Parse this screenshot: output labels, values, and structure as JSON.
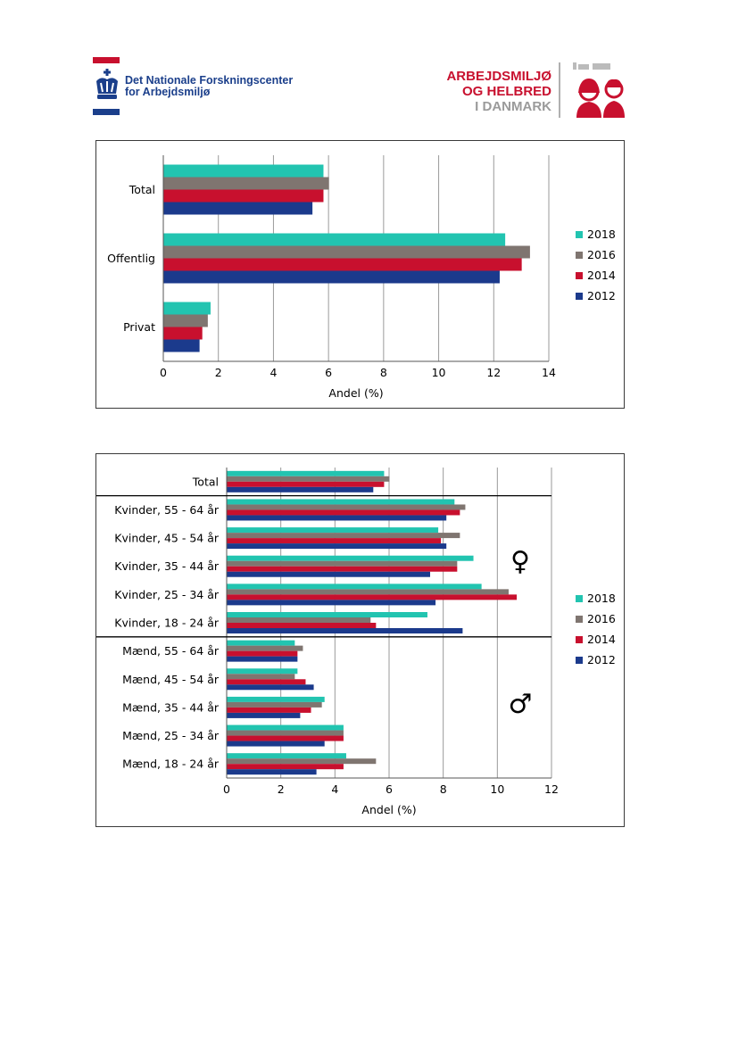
{
  "header": {
    "left_logo": {
      "line1": "Det Nationale Forskningscenter",
      "line2": "for Arbejdsmiljø"
    },
    "right_logo": {
      "line1": "ARBEJDSMILJØ",
      "line2": "OG HELBRED",
      "line3": "I DANMARK"
    }
  },
  "colors": {
    "2018": "#22c4b0",
    "2016": "#7f7570",
    "2014": "#c8102e",
    "2012": "#1b3a8c",
    "brand_red": "#c8102e",
    "brand_blue": "#1b3f8b",
    "brand_grey": "#9a9a9a"
  },
  "legend": [
    "2018",
    "2016",
    "2014",
    "2012"
  ],
  "symbols": {
    "female": "♀",
    "male": "♂"
  },
  "chart_data": [
    {
      "type": "bar",
      "orientation": "horizontal",
      "categories": [
        "Total",
        "Offentlig",
        "Privat"
      ],
      "series": [
        {
          "name": "2018",
          "values": [
            5.8,
            12.4,
            1.7
          ]
        },
        {
          "name": "2016",
          "values": [
            6.0,
            13.3,
            1.6
          ]
        },
        {
          "name": "2014",
          "values": [
            5.8,
            13.0,
            1.4
          ]
        },
        {
          "name": "2012",
          "values": [
            5.4,
            12.2,
            1.3
          ]
        }
      ],
      "xlabel": "Andel (%)",
      "xlim": [
        0,
        14
      ],
      "xticks": [
        0,
        2,
        4,
        6,
        8,
        10,
        12,
        14
      ],
      "grid": "vertical",
      "legend_position": "right"
    },
    {
      "type": "bar",
      "orientation": "horizontal",
      "categories": [
        "Total",
        "Kvinder, 55 - 64 år",
        "Kvinder, 45 - 54 år",
        "Kvinder, 35 - 44 år",
        "Kvinder, 25 - 34 år",
        "Kvinder, 18 - 24 år",
        "Mænd, 55 - 64 år",
        "Mænd, 45 - 54 år",
        "Mænd, 35 - 44 år",
        "Mænd, 25 - 34 år",
        "Mænd, 18 - 24 år"
      ],
      "series": [
        {
          "name": "2018",
          "values": [
            5.8,
            8.4,
            7.8,
            9.1,
            9.4,
            7.4,
            2.5,
            2.6,
            3.6,
            4.3,
            4.4
          ]
        },
        {
          "name": "2016",
          "values": [
            6.0,
            8.8,
            8.6,
            8.5,
            10.4,
            5.3,
            2.8,
            2.5,
            3.5,
            4.3,
            5.5
          ]
        },
        {
          "name": "2014",
          "values": [
            5.8,
            8.6,
            7.9,
            8.5,
            10.7,
            5.5,
            2.6,
            2.9,
            3.1,
            4.3,
            4.3
          ]
        },
        {
          "name": "2012",
          "values": [
            5.4,
            8.1,
            8.1,
            7.5,
            7.7,
            8.7,
            2.6,
            3.2,
            2.7,
            3.6,
            3.3
          ]
        }
      ],
      "xlabel": "Andel (%)",
      "xlim": [
        0,
        12
      ],
      "xticks": [
        0,
        2,
        4,
        6,
        8,
        10,
        12
      ],
      "grid": "vertical",
      "legend_position": "right",
      "group_dividers_after": [
        "Total",
        "Kvinder, 18 - 24 år"
      ]
    }
  ]
}
